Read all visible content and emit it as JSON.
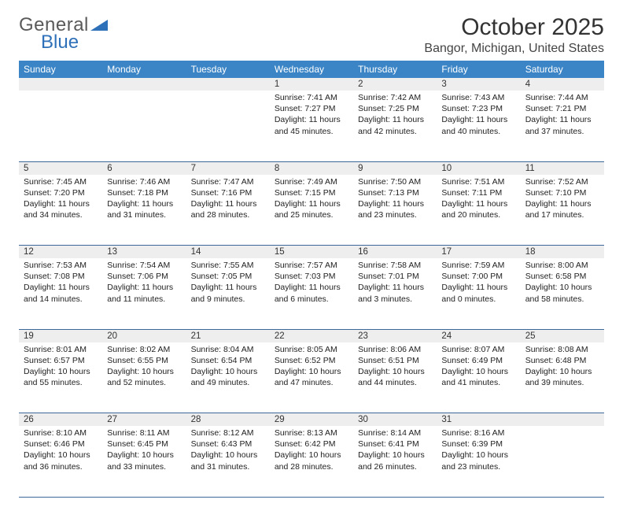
{
  "logo": {
    "text_a": "General",
    "text_b": "Blue"
  },
  "title": "October 2025",
  "location": "Bangor, Michigan, United States",
  "colors": {
    "header_bg": "#3b85c6",
    "header_text": "#ffffff",
    "daynum_bg": "#eeeeee",
    "row_border": "#3b6799",
    "logo_gray": "#5a5a5a",
    "logo_blue": "#2f71b8"
  },
  "weekdays": [
    "Sunday",
    "Monday",
    "Tuesday",
    "Wednesday",
    "Thursday",
    "Friday",
    "Saturday"
  ],
  "weeks": [
    {
      "nums": [
        "",
        "",
        "",
        "1",
        "2",
        "3",
        "4"
      ],
      "cells": [
        null,
        null,
        null,
        {
          "sunrise": "7:41 AM",
          "sunset": "7:27 PM",
          "day_h": 11,
          "day_m": 45
        },
        {
          "sunrise": "7:42 AM",
          "sunset": "7:25 PM",
          "day_h": 11,
          "day_m": 42
        },
        {
          "sunrise": "7:43 AM",
          "sunset": "7:23 PM",
          "day_h": 11,
          "day_m": 40
        },
        {
          "sunrise": "7:44 AM",
          "sunset": "7:21 PM",
          "day_h": 11,
          "day_m": 37
        }
      ]
    },
    {
      "nums": [
        "5",
        "6",
        "7",
        "8",
        "9",
        "10",
        "11"
      ],
      "cells": [
        {
          "sunrise": "7:45 AM",
          "sunset": "7:20 PM",
          "day_h": 11,
          "day_m": 34
        },
        {
          "sunrise": "7:46 AM",
          "sunset": "7:18 PM",
          "day_h": 11,
          "day_m": 31
        },
        {
          "sunrise": "7:47 AM",
          "sunset": "7:16 PM",
          "day_h": 11,
          "day_m": 28
        },
        {
          "sunrise": "7:49 AM",
          "sunset": "7:15 PM",
          "day_h": 11,
          "day_m": 25
        },
        {
          "sunrise": "7:50 AM",
          "sunset": "7:13 PM",
          "day_h": 11,
          "day_m": 23
        },
        {
          "sunrise": "7:51 AM",
          "sunset": "7:11 PM",
          "day_h": 11,
          "day_m": 20
        },
        {
          "sunrise": "7:52 AM",
          "sunset": "7:10 PM",
          "day_h": 11,
          "day_m": 17
        }
      ]
    },
    {
      "nums": [
        "12",
        "13",
        "14",
        "15",
        "16",
        "17",
        "18"
      ],
      "cells": [
        {
          "sunrise": "7:53 AM",
          "sunset": "7:08 PM",
          "day_h": 11,
          "day_m": 14
        },
        {
          "sunrise": "7:54 AM",
          "sunset": "7:06 PM",
          "day_h": 11,
          "day_m": 11
        },
        {
          "sunrise": "7:55 AM",
          "sunset": "7:05 PM",
          "day_h": 11,
          "day_m": 9
        },
        {
          "sunrise": "7:57 AM",
          "sunset": "7:03 PM",
          "day_h": 11,
          "day_m": 6
        },
        {
          "sunrise": "7:58 AM",
          "sunset": "7:01 PM",
          "day_h": 11,
          "day_m": 3
        },
        {
          "sunrise": "7:59 AM",
          "sunset": "7:00 PM",
          "day_h": 11,
          "day_m": 0
        },
        {
          "sunrise": "8:00 AM",
          "sunset": "6:58 PM",
          "day_h": 10,
          "day_m": 58
        }
      ]
    },
    {
      "nums": [
        "19",
        "20",
        "21",
        "22",
        "23",
        "24",
        "25"
      ],
      "cells": [
        {
          "sunrise": "8:01 AM",
          "sunset": "6:57 PM",
          "day_h": 10,
          "day_m": 55
        },
        {
          "sunrise": "8:02 AM",
          "sunset": "6:55 PM",
          "day_h": 10,
          "day_m": 52
        },
        {
          "sunrise": "8:04 AM",
          "sunset": "6:54 PM",
          "day_h": 10,
          "day_m": 49
        },
        {
          "sunrise": "8:05 AM",
          "sunset": "6:52 PM",
          "day_h": 10,
          "day_m": 47
        },
        {
          "sunrise": "8:06 AM",
          "sunset": "6:51 PM",
          "day_h": 10,
          "day_m": 44
        },
        {
          "sunrise": "8:07 AM",
          "sunset": "6:49 PM",
          "day_h": 10,
          "day_m": 41
        },
        {
          "sunrise": "8:08 AM",
          "sunset": "6:48 PM",
          "day_h": 10,
          "day_m": 39
        }
      ]
    },
    {
      "nums": [
        "26",
        "27",
        "28",
        "29",
        "30",
        "31",
        ""
      ],
      "cells": [
        {
          "sunrise": "8:10 AM",
          "sunset": "6:46 PM",
          "day_h": 10,
          "day_m": 36
        },
        {
          "sunrise": "8:11 AM",
          "sunset": "6:45 PM",
          "day_h": 10,
          "day_m": 33
        },
        {
          "sunrise": "8:12 AM",
          "sunset": "6:43 PM",
          "day_h": 10,
          "day_m": 31
        },
        {
          "sunrise": "8:13 AM",
          "sunset": "6:42 PM",
          "day_h": 10,
          "day_m": 28
        },
        {
          "sunrise": "8:14 AM",
          "sunset": "6:41 PM",
          "day_h": 10,
          "day_m": 26
        },
        {
          "sunrise": "8:16 AM",
          "sunset": "6:39 PM",
          "day_h": 10,
          "day_m": 23
        },
        null
      ]
    }
  ],
  "labels": {
    "sunrise": "Sunrise:",
    "sunset": "Sunset:",
    "daylight_prefix": "Daylight:",
    "hours_word": "hours",
    "and_word": "and",
    "minutes_word": "minutes."
  }
}
